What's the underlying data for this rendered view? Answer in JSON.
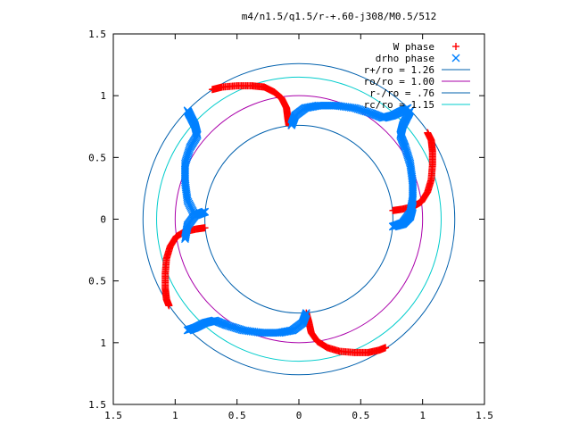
{
  "chart_data": {
    "type": "scatter",
    "title": "m4/n1.5/q1.5/r-+.60-j308/M0.5/512",
    "xlim": [
      -1.5,
      1.5
    ],
    "ylim": [
      -1.5,
      1.5
    ],
    "x_tick_values": [
      -1.5,
      -1,
      -0.5,
      0,
      0.5,
      1,
      1.5
    ],
    "x_tick_labels": [
      "1.5",
      "1",
      "0.5",
      "0",
      "0.5",
      "1",
      "1.5"
    ],
    "y_tick_values": [
      1.5,
      1,
      0.5,
      0,
      -0.5,
      -1,
      -1.5
    ],
    "y_tick_labels": [
      "1.5",
      "1",
      "0.5",
      "0",
      "0.5",
      "1",
      "1.5"
    ],
    "grid": false,
    "legend_position": "top-right",
    "legend": [
      {
        "label": "W phase",
        "kind": "marker",
        "marker": "+",
        "color": "#ff0000"
      },
      {
        "label": "drho phase",
        "kind": "marker",
        "marker": "x",
        "color": "#0080ff"
      },
      {
        "label": "r+/ro = 1.26",
        "kind": "line",
        "color": "#0060ad"
      },
      {
        "label": "ro/ro = 1.00",
        "kind": "line",
        "color": "#aa00aa"
      },
      {
        "label": "r-/ro = .76",
        "kind": "line",
        "color": "#0060ad"
      },
      {
        "label": "rc/ro = 1.15",
        "kind": "line",
        "color": "#00cccc"
      }
    ],
    "circles": [
      {
        "radius": 1.26,
        "color": "#0060ad"
      },
      {
        "radius": 1.0,
        "color": "#aa00aa"
      },
      {
        "radius": 0.76,
        "color": "#0060ad"
      },
      {
        "radius": 1.15,
        "color": "#00cccc"
      }
    ],
    "series": [
      {
        "name": "W phase",
        "color": "#ff0000",
        "marker": "+",
        "segments": [
          [
            [
              -0.08,
              0.76
            ],
            [
              -0.09,
              0.82
            ],
            [
              -0.1,
              0.9
            ],
            [
              -0.14,
              0.98
            ],
            [
              -0.2,
              1.03
            ],
            [
              -0.28,
              1.07
            ],
            [
              -0.38,
              1.08
            ],
            [
              -0.5,
              1.08
            ],
            [
              -0.62,
              1.07
            ],
            [
              -0.7,
              1.05
            ]
          ],
          [
            [
              0.76,
              0.07
            ],
            [
              0.83,
              0.08
            ],
            [
              0.92,
              0.1
            ],
            [
              0.99,
              0.14
            ],
            [
              1.04,
              0.22
            ],
            [
              1.07,
              0.32
            ],
            [
              1.08,
              0.44
            ],
            [
              1.08,
              0.55
            ],
            [
              1.07,
              0.64
            ],
            [
              1.04,
              0.7
            ]
          ],
          [
            [
              0.06,
              -0.76
            ],
            [
              0.08,
              -0.83
            ],
            [
              0.1,
              -0.92
            ],
            [
              0.15,
              -0.99
            ],
            [
              0.23,
              -1.04
            ],
            [
              0.33,
              -1.07
            ],
            [
              0.45,
              -1.08
            ],
            [
              0.56,
              -1.08
            ],
            [
              0.65,
              -1.06
            ],
            [
              0.7,
              -1.04
            ]
          ],
          [
            [
              -0.76,
              -0.07
            ],
            [
              -0.83,
              -0.08
            ],
            [
              -0.92,
              -0.1
            ],
            [
              -0.99,
              -0.14
            ],
            [
              -1.04,
              -0.22
            ],
            [
              -1.07,
              -0.32
            ],
            [
              -1.08,
              -0.44
            ],
            [
              -1.08,
              -0.56
            ],
            [
              -1.07,
              -0.65
            ],
            [
              -1.05,
              -0.7
            ]
          ]
        ]
      },
      {
        "name": "drho phase",
        "color": "#0080ff",
        "marker": "x",
        "segments": [
          [
            [
              -0.06,
              0.76
            ],
            [
              -0.03,
              0.84
            ],
            [
              0.05,
              0.9
            ],
            [
              0.16,
              0.92
            ],
            [
              0.3,
              0.92
            ],
            [
              0.45,
              0.9
            ],
            [
              0.58,
              0.86
            ],
            [
              0.68,
              0.82
            ],
            [
              0.76,
              0.84
            ],
            [
              0.84,
              0.88
            ],
            [
              0.88,
              0.9
            ]
          ],
          [
            [
              0.76,
              -0.06
            ],
            [
              0.84,
              -0.04
            ],
            [
              0.9,
              0.02
            ],
            [
              0.92,
              0.1
            ]
          ],
          [
            [
              0.76,
              -0.06
            ],
            [
              0.84,
              -0.03
            ],
            [
              0.9,
              0.05
            ],
            [
              0.92,
              0.16
            ],
            [
              0.92,
              0.3
            ],
            [
              0.9,
              0.45
            ],
            [
              0.86,
              0.58
            ],
            [
              0.82,
              0.68
            ],
            [
              0.84,
              0.76
            ],
            [
              0.88,
              0.84
            ],
            [
              0.9,
              0.88
            ]
          ],
          [
            [
              0.06,
              -0.76
            ],
            [
              0.03,
              -0.84
            ],
            [
              -0.05,
              -0.9
            ],
            [
              -0.16,
              -0.92
            ],
            [
              -0.3,
              -0.92
            ],
            [
              -0.45,
              -0.9
            ],
            [
              -0.58,
              -0.86
            ],
            [
              -0.68,
              -0.82
            ],
            [
              -0.76,
              -0.84
            ],
            [
              -0.84,
              -0.88
            ],
            [
              -0.9,
              -0.9
            ]
          ],
          [
            [
              -0.76,
              0.06
            ],
            [
              -0.84,
              0.03
            ],
            [
              -0.9,
              -0.05
            ],
            [
              -0.92,
              -0.16
            ]
          ],
          [
            [
              -0.76,
              0.06
            ],
            [
              -0.84,
              0.03
            ],
            [
              -0.9,
              0.15
            ],
            [
              -0.92,
              0.3
            ],
            [
              -0.92,
              0.45
            ],
            [
              -0.88,
              0.58
            ],
            [
              -0.82,
              0.68
            ],
            [
              -0.84,
              0.76
            ],
            [
              -0.88,
              0.84
            ],
            [
              -0.9,
              0.88
            ]
          ]
        ]
      }
    ]
  }
}
